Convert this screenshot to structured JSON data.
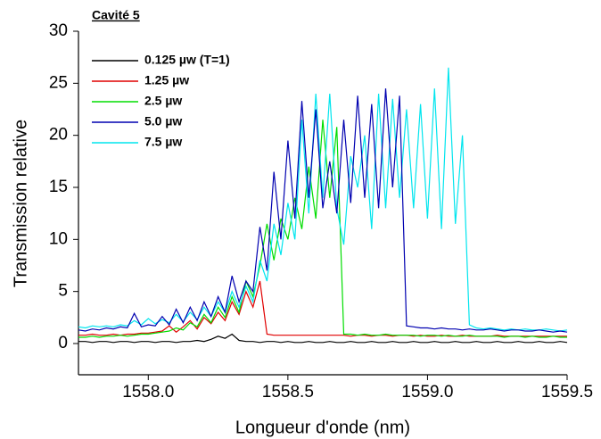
{
  "chart_data": {
    "type": "line",
    "title": "Cavité 5",
    "x_label": "Longueur d'onde (nm)",
    "y_label": "Transmission relative",
    "x": [
      1557.75,
      1557.775,
      1557.8,
      1557.825,
      1557.85,
      1557.875,
      1557.9,
      1557.925,
      1557.95,
      1557.975,
      1558,
      1558.025,
      1558.05,
      1558.075,
      1558.1,
      1558.125,
      1558.15,
      1558.175,
      1558.2,
      1558.225,
      1558.25,
      1558.275,
      1558.3,
      1558.325,
      1558.35,
      1558.375,
      1558.4,
      1558.425,
      1558.45,
      1558.475,
      1558.5,
      1558.525,
      1558.55,
      1558.575,
      1558.6,
      1558.625,
      1558.65,
      1558.675,
      1558.7,
      1558.725,
      1558.75,
      1558.775,
      1558.8,
      1558.825,
      1558.85,
      1558.875,
      1558.9,
      1558.925,
      1558.95,
      1558.975,
      1559,
      1559.025,
      1559.05,
      1559.075,
      1559.1,
      1559.125,
      1559.15,
      1559.175,
      1559.2,
      1559.225,
      1559.25,
      1559.275,
      1559.3,
      1559.325,
      1559.35,
      1559.375,
      1559.4,
      1559.425,
      1559.45,
      1559.475,
      1559.5
    ],
    "series": [
      {
        "name": "0.125 µw (T=1)",
        "color": "#000000",
        "values": [
          0.2,
          0.2,
          0.1,
          0.2,
          0.2,
          0.1,
          0.2,
          0.2,
          0.1,
          0.2,
          0.2,
          0.1,
          0.2,
          0.2,
          0.1,
          0.2,
          0.2,
          0.3,
          0.2,
          0.4,
          0.7,
          0.5,
          0.9,
          0.3,
          0.2,
          0.2,
          0.1,
          0.2,
          0.2,
          0.1,
          0.2,
          0.1,
          0.1,
          0.2,
          0.1,
          0.1,
          0.2,
          0.1,
          0.1,
          0.2,
          0.1,
          0.1,
          0.2,
          0.1,
          0.1,
          0.2,
          0.1,
          0.1,
          0.2,
          0.1,
          0.1,
          0.2,
          0.1,
          0.1,
          0.2,
          0.1,
          0.1,
          0.2,
          0.1,
          0.1,
          0.2,
          0.1,
          0.1,
          0.2,
          0.1,
          0.1,
          0.2,
          0.1,
          0.1,
          0.2,
          0.1
        ]
      },
      {
        "name": "1.25 µw",
        "color": "#e00000",
        "values": [
          0.8,
          0.8,
          0.9,
          0.8,
          0.8,
          0.9,
          0.8,
          0.9,
          0.9,
          1.0,
          1.0,
          1.1,
          1.2,
          1.7,
          1.1,
          1.6,
          2.2,
          1.4,
          2.5,
          1.9,
          3.0,
          2.2,
          4.0,
          2.8,
          5.0,
          3.5,
          6.0,
          0.9,
          0.8,
          0.8,
          0.8,
          0.8,
          0.8,
          0.8,
          0.8,
          0.8,
          0.8,
          0.8,
          0.8,
          0.7,
          0.8,
          0.8,
          0.7,
          0.8,
          0.8,
          0.7,
          0.8,
          0.8,
          0.7,
          0.8,
          0.7,
          0.7,
          0.8,
          0.7,
          0.7,
          0.8,
          0.7,
          0.7,
          0.7,
          0.7,
          0.8,
          0.7,
          0.7,
          0.7,
          0.7,
          0.7,
          0.7,
          0.7,
          0.7,
          0.7,
          0.7
        ]
      },
      {
        "name": "2.5 µw",
        "color": "#00dd00",
        "values": [
          0.6,
          0.6,
          0.7,
          0.6,
          0.7,
          0.7,
          0.8,
          0.7,
          0.8,
          0.9,
          0.9,
          1.0,
          1.1,
          1.2,
          1.5,
          1.3,
          2.0,
          1.6,
          2.8,
          2.0,
          3.5,
          2.5,
          4.5,
          3.0,
          6.0,
          4.5,
          7.5,
          11.5,
          8.0,
          12.0,
          10.0,
          14.0,
          11.0,
          17.0,
          12.0,
          21.5,
          14.0,
          20.8,
          0.9,
          0.9,
          0.8,
          0.9,
          0.8,
          0.8,
          0.9,
          0.8,
          0.8,
          0.8,
          0.8,
          0.7,
          0.8,
          0.8,
          0.7,
          0.8,
          0.7,
          0.7,
          0.8,
          0.7,
          0.7,
          0.7,
          0.7,
          0.6,
          0.7,
          0.7,
          0.6,
          0.7,
          0.6,
          0.6,
          0.7,
          0.6,
          0.6
        ]
      },
      {
        "name": "5.0 µw",
        "color": "#0000b0",
        "values": [
          1.3,
          1.2,
          1.4,
          1.3,
          1.5,
          1.4,
          1.6,
          1.5,
          2.9,
          1.6,
          1.8,
          1.7,
          2.6,
          1.8,
          3.3,
          2.0,
          3.5,
          2.2,
          4.0,
          2.6,
          4.5,
          3.0,
          6.5,
          4.0,
          6.0,
          5.0,
          11.2,
          7.0,
          16.5,
          10.0,
          19.5,
          12.0,
          23.3,
          14.0,
          22.5,
          13.0,
          17.5,
          12.5,
          21.5,
          13.5,
          23.8,
          14.0,
          23.0,
          13.0,
          24.5,
          15.0,
          23.8,
          1.7,
          1.6,
          1.5,
          1.5,
          1.4,
          1.5,
          1.4,
          1.4,
          1.3,
          1.4,
          1.3,
          1.3,
          1.4,
          1.3,
          1.2,
          1.3,
          1.3,
          1.2,
          1.2,
          1.3,
          1.2,
          1.1,
          1.2,
          1.1
        ]
      },
      {
        "name": "7.5 µw",
        "color": "#00e5ee",
        "values": [
          1.6,
          1.5,
          1.7,
          1.6,
          1.7,
          1.6,
          1.8,
          1.7,
          2.2,
          1.8,
          2.4,
          1.9,
          2.3,
          2.0,
          2.8,
          2.1,
          3.0,
          2.3,
          3.5,
          2.6,
          4.0,
          3.0,
          5.0,
          3.5,
          5.5,
          4.0,
          8.0,
          6.0,
          11.5,
          8.5,
          13.5,
          10.0,
          21.5,
          12.5,
          24.0,
          14.0,
          24.0,
          13.0,
          9.5,
          18.0,
          15.0,
          20.0,
          11.0,
          24.0,
          13.0,
          23.5,
          14.0,
          22.5,
          13.0,
          23.0,
          12.0,
          24.5,
          11.0,
          26.5,
          11.5,
          20.0,
          1.8,
          1.5,
          1.4,
          1.5,
          1.4,
          1.3,
          1.4,
          1.3,
          1.4,
          1.3,
          1.3,
          1.4,
          1.3,
          1.2,
          1.3
        ]
      }
    ],
    "xlim": [
      1557.75,
      1559.5
    ],
    "ylim": [
      -3,
      30
    ],
    "xticks": [
      {
        "value": 1558,
        "label": "1558.0"
      },
      {
        "value": 1558.5,
        "label": "1558.5"
      },
      {
        "value": 1559,
        "label": "1559.0"
      },
      {
        "value": 1559.5,
        "label": "1559.5"
      }
    ],
    "yticks": [
      0,
      5,
      10,
      15,
      20,
      25,
      30
    ],
    "legend": "upper left"
  }
}
